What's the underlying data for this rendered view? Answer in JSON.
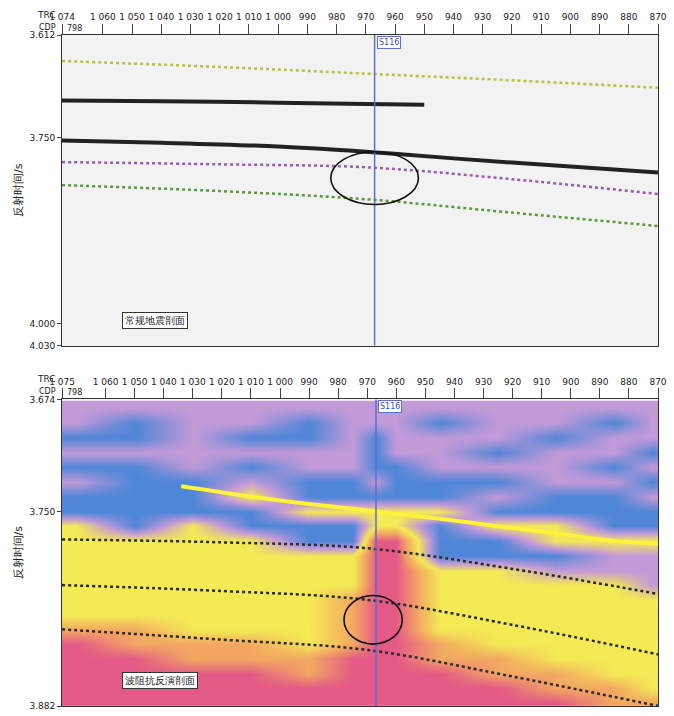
{
  "chart_data": [
    {
      "type": "seismic_section",
      "title": "常规地震剖面",
      "xlabel": "TRC",
      "cdp_label": "CDP",
      "cdp_value": 798,
      "ylabel": "反射时间/s",
      "xlim": [
        1074,
        870
      ],
      "xticks": [
        {
          "value": 1074,
          "label": "1 074"
        },
        {
          "value": 1060,
          "label": "1 060"
        },
        {
          "value": 1050,
          "label": "1 050"
        },
        {
          "value": 1040,
          "label": "1 040"
        },
        {
          "value": 1030,
          "label": "1 030"
        },
        {
          "value": 1020,
          "label": "1 020"
        },
        {
          "value": 1010,
          "label": "1 010"
        },
        {
          "value": 1000,
          "label": "1 000"
        },
        990,
        980,
        970,
        960,
        950,
        940,
        930,
        920,
        910,
        900,
        890,
        880,
        870
      ],
      "ylim": [
        4.03,
        3.612
      ],
      "yticks": [
        3.612,
        {
          "value": 3.75,
          "label": "3.750"
        },
        {
          "value": 4,
          "label": "4.000"
        },
        {
          "value": 4.03,
          "label": "4.030"
        }
      ],
      "well": {
        "label": "S116",
        "x": 967
      },
      "ellipse": {
        "x": [
          982,
          952
        ],
        "y": [
          3.769,
          3.84
        ]
      },
      "series": [
        {
          "color": "#b8c23c",
          "line_style": "dotted",
          "x": [
            1074,
            1020,
            970,
            920,
            870
          ],
          "values": [
            3.647,
            3.655,
            3.664,
            3.673,
            3.683
          ]
        },
        {
          "color": "#222222",
          "line_style": "solid",
          "x": [
            1074,
            1040,
            1000,
            970,
            950
          ],
          "values": [
            3.7,
            3.701,
            3.703,
            3.705,
            3.706
          ]
        },
        {
          "color": "#222222",
          "line_style": "solid",
          "x": [
            1074,
            1040,
            1000,
            970,
            940,
            900,
            870
          ],
          "values": [
            3.754,
            3.757,
            3.762,
            3.769,
            3.778,
            3.789,
            3.797
          ]
        },
        {
          "color": "#9b59b6",
          "line_style": "dotted",
          "x": [
            1074,
            1020,
            970,
            920,
            870
          ],
          "values": [
            3.783,
            3.786,
            3.79,
            3.806,
            3.826
          ]
        },
        {
          "color": "#5a9a3a",
          "line_style": "dotted",
          "x": [
            1074,
            1020,
            970,
            920,
            870
          ],
          "values": [
            3.814,
            3.822,
            3.833,
            3.851,
            3.869
          ]
        }
      ]
    },
    {
      "type": "inversion_section",
      "title": "波阻抗反演剖面",
      "xlabel": "TRC",
      "cdp_label": "CDP",
      "cdp_value": 798,
      "ylabel": "反射时间/s",
      "xlim": [
        1075,
        870
      ],
      "xticks": [
        {
          "value": 1075,
          "label": "1 075"
        },
        {
          "value": 1060,
          "label": "1 060"
        },
        {
          "value": 1050,
          "label": "1 050"
        },
        {
          "value": 1040,
          "label": "1 040"
        },
        {
          "value": 1030,
          "label": "1 030"
        },
        {
          "value": 1020,
          "label": "1 020"
        },
        {
          "value": 1010,
          "label": "1 010"
        },
        {
          "value": 1000,
          "label": "1 000"
        },
        990,
        980,
        970,
        960,
        950,
        940,
        930,
        920,
        910,
        900,
        890,
        880,
        870
      ],
      "ylim": [
        3.882,
        3.674
      ],
      "yticks": [
        3.674,
        {
          "value": 3.75,
          "label": "3.750"
        },
        3.882
      ],
      "well": {
        "label": "S116",
        "x": 967
      },
      "ellipse": {
        "x": [
          978,
          958
        ],
        "y": [
          3.807,
          3.84
        ]
      },
      "cells": {
        "x": [
          1070,
          1050,
          1030,
          1010,
          990,
          975,
          967,
          960,
          945,
          925,
          905,
          885,
          872
        ],
        "y": [
          3.68,
          3.69,
          3.7,
          3.71,
          3.72,
          3.73,
          3.74,
          3.75,
          3.76,
          3.77,
          3.78,
          3.79,
          3.8,
          3.81,
          3.82,
          3.83,
          3.84,
          3.85,
          3.86,
          3.87,
          3.88
        ],
        "values": [
          [
            1,
            1,
            1,
            1,
            1,
            1,
            1,
            1,
            1,
            1,
            1,
            1,
            1
          ],
          [
            1,
            0,
            1,
            1,
            0,
            1,
            1,
            1,
            0,
            1,
            1,
            0,
            1
          ],
          [
            0,
            0,
            1,
            0,
            0,
            1,
            0,
            1,
            1,
            1,
            0,
            1,
            1
          ],
          [
            1,
            1,
            1,
            1,
            1,
            1,
            0,
            1,
            1,
            0,
            1,
            1,
            0
          ],
          [
            0,
            0,
            1,
            0,
            1,
            1,
            0,
            0,
            1,
            1,
            1,
            0,
            1
          ],
          [
            1,
            0,
            0,
            1,
            0,
            0,
            1,
            0,
            0,
            0,
            1,
            1,
            0
          ],
          [
            0,
            0,
            0,
            2,
            0,
            0,
            0,
            0,
            0,
            1,
            0,
            0,
            1
          ],
          [
            0,
            0,
            0,
            0,
            2,
            2,
            2,
            2,
            2,
            0,
            0,
            0,
            0
          ],
          [
            2,
            0,
            2,
            0,
            0,
            0,
            2,
            2,
            0,
            2,
            2,
            0,
            0
          ],
          [
            2,
            2,
            2,
            2,
            0,
            0,
            4,
            4,
            0,
            0,
            2,
            2,
            2
          ],
          [
            2,
            2,
            2,
            2,
            2,
            2,
            4,
            4,
            0,
            0,
            0,
            1,
            1
          ],
          [
            2,
            2,
            2,
            2,
            2,
            2,
            4,
            4,
            2,
            2,
            1,
            1,
            1
          ],
          [
            2,
            2,
            2,
            2,
            2,
            2,
            4,
            4,
            2,
            2,
            2,
            2,
            1
          ],
          [
            2,
            2,
            2,
            2,
            2,
            3,
            4,
            4,
            2,
            2,
            2,
            2,
            2
          ],
          [
            2,
            2,
            2,
            2,
            2,
            3,
            4,
            4,
            2,
            2,
            2,
            2,
            2
          ],
          [
            3,
            3,
            2,
            2,
            2,
            3,
            4,
            4,
            2,
            2,
            2,
            2,
            2
          ],
          [
            4,
            3,
            3,
            3,
            2,
            3,
            4,
            4,
            3,
            2,
            2,
            2,
            2
          ],
          [
            4,
            4,
            3,
            3,
            3,
            4,
            4,
            4,
            3,
            3,
            2,
            2,
            2
          ],
          [
            4,
            4,
            4,
            4,
            3,
            4,
            4,
            4,
            4,
            3,
            3,
            2,
            2
          ],
          [
            4,
            4,
            4,
            4,
            4,
            4,
            4,
            4,
            4,
            4,
            3,
            3,
            2
          ],
          [
            4,
            4,
            4,
            4,
            4,
            4,
            4,
            4,
            4,
            4,
            4,
            3,
            3
          ]
        ],
        "levels": [
          0,
          1,
          2,
          3,
          4
        ],
        "colors": [
          "#4f86d8",
          "#c39ad8",
          "#f4ea55",
          "#f3a862",
          "#e45a86"
        ]
      },
      "series": [
        {
          "color": "#fff23a",
          "line_style": "solid",
          "x": [
            1034,
            1010,
            990,
            967,
            945,
            925,
            905,
            885,
            870
          ],
          "values": [
            3.733,
            3.74,
            3.745,
            3.75,
            3.755,
            3.76,
            3.765,
            3.77,
            3.772
          ]
        },
        {
          "color": "#2a2a2a",
          "line_style": "dotted",
          "x": [
            1075,
            1020,
            970,
            920,
            870
          ],
          "values": [
            3.769,
            3.771,
            3.775,
            3.789,
            3.806
          ]
        },
        {
          "color": "#2a2a2a",
          "line_style": "dotted",
          "x": [
            1075,
            1020,
            970,
            920,
            870
          ],
          "values": [
            3.8,
            3.804,
            3.81,
            3.827,
            3.847
          ]
        },
        {
          "color": "#2a2a2a",
          "line_style": "dotted",
          "x": [
            1075,
            1020,
            970,
            920,
            870
          ],
          "values": [
            3.83,
            3.837,
            3.844,
            3.862,
            3.882
          ]
        }
      ]
    }
  ]
}
